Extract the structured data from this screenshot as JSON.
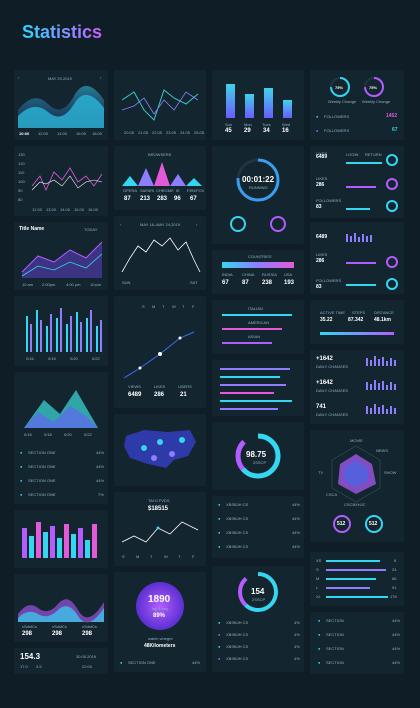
{
  "app": {
    "title": "Statistics"
  },
  "colors": {
    "bg": "#0f1d26",
    "card": "#13252f",
    "cyan": "#35d6f2",
    "purple": "#b35cff",
    "pink": "#e35ad8",
    "teal": "#38c7c7",
    "blue": "#3a6df0"
  },
  "c1": {
    "date": "MAY 20,2019",
    "times": [
      "10:00",
      "12:00",
      "14:00",
      "16:00",
      "18:00"
    ]
  },
  "c2": {
    "x_labels": [
      "20.05",
      "21.05",
      "22.05",
      "23.05",
      "24.05",
      "25.05"
    ]
  },
  "c3": {
    "days": [
      {
        "day": "Sun",
        "val": "45"
      },
      {
        "day": "Mon",
        "val": "29"
      },
      {
        "day": "Tues",
        "val": "34"
      },
      {
        "day": "Wed",
        "val": "16"
      }
    ]
  },
  "c4": {
    "ring1": "75%",
    "ring2": "75%",
    "cap1": "Weekly Change",
    "cap2": "Weekly Change",
    "f1_label": "FOLLOWERS",
    "f1_val": "1452",
    "f2_label": "FOLLOWERS",
    "f2_val": "67"
  },
  "c5": {
    "y": [
      "130",
      "120",
      "110",
      "100",
      "90",
      "80"
    ],
    "x": [
      "12.00",
      "13.00",
      "14.00",
      "15.00",
      "16.00",
      "17.00"
    ]
  },
  "c6": {
    "header": "BROWSERS",
    "cols": [
      {
        "name": "OPERA",
        "val": "87"
      },
      {
        "name": "SAFARI",
        "val": "213"
      },
      {
        "name": "CHROME",
        "val": "283"
      },
      {
        "name": "IE",
        "val": "96"
      },
      {
        "name": "FIREFOX",
        "val": "67"
      }
    ]
  },
  "c7": {
    "time": "00:01:22",
    "status": "RUNNING"
  },
  "c8": {
    "rows": [
      {
        "label": "LIKES",
        "val": "6489"
      },
      {
        "label": "LIKES",
        "val": "286"
      },
      {
        "label": "FOLLOWERS",
        "val": "83"
      }
    ],
    "legend": [
      "LOGIN",
      "RETURN"
    ]
  },
  "c9": {
    "title": "Title Name",
    "dropdown": "TODAY",
    "times": [
      "10 am",
      "2:00pm",
      "4:00 pm",
      "10:pm"
    ]
  },
  "c10": {
    "date": "MAY 18–MAY 24,2019",
    "x": [
      "SUN",
      "SAT"
    ]
  },
  "c11": {
    "header": "COUNTRIES",
    "cols": [
      {
        "name": "INDIA",
        "val": "67"
      },
      {
        "name": "CHINA",
        "val": "87"
      },
      {
        "name": "RUSSIA",
        "val": "238"
      },
      {
        "name": "USA",
        "val": "193"
      }
    ]
  },
  "c12": {
    "rows": [
      {
        "label": "LIKES",
        "val": "6489"
      },
      {
        "label": "LIKES",
        "val": "286"
      },
      {
        "label": "FOLLOWERS",
        "val": "83"
      }
    ]
  },
  "c13": {
    "x": [
      "0/16",
      "0/18",
      "0/20",
      "0/22"
    ]
  },
  "c14": {
    "days": [
      "S",
      "M",
      "T",
      "W",
      "T",
      "F"
    ],
    "stats": [
      {
        "label": "VIEWS",
        "val": "6489"
      },
      {
        "label": "LIKES",
        "val": "286"
      },
      {
        "label": "USERS",
        "val": "21"
      }
    ]
  },
  "c15": {
    "rows": [
      "ITALIAN",
      "AMERICAN",
      "ASIAN"
    ]
  },
  "c16": {
    "stats": [
      {
        "label": "ACTIVE TIME",
        "val": "35.22"
      },
      {
        "label": "STEPS",
        "val": "87.342"
      },
      {
        "label": "DISTANCE",
        "val": "48.1km"
      }
    ]
  },
  "c17": {
    "rows": [
      {
        "val": "+1642",
        "label": "DAILY CHANGES"
      },
      {
        "val": "+1642",
        "label": "DAILY CHANGES"
      },
      {
        "val": "741",
        "label": "DAILY CHANGES"
      }
    ]
  },
  "c18": {
    "x": [
      "0/16",
      "0/18",
      "0/20",
      "0/22"
    ],
    "rows": [
      {
        "label": "SECTION ONE",
        "val": "44%"
      },
      {
        "label": "SECTION ONE",
        "val": "44%"
      },
      {
        "label": "SECTION ONE",
        "val": "44%"
      },
      {
        "label": "SECTION ONE",
        "val": "7%"
      }
    ]
  },
  "c20": {
    "rows": [
      "",
      "",
      "",
      "",
      "",
      ""
    ]
  },
  "c21": {
    "val": "98.75",
    "sub": "2SSCP"
  },
  "c22": {
    "labels": [
      "MOVIE",
      "NEWS",
      "SHOW",
      "TV",
      "CSCA",
      "CSCBXHJC"
    ],
    "r1": "512",
    "r2": "512"
  },
  "c23": {
    "header": "TAHJ FVDS",
    "value": "$18515",
    "days": [
      "S",
      "M",
      "T",
      "W",
      "T",
      "F"
    ]
  },
  "c24": {
    "rows": [
      {
        "label": "XBSBJH CS",
        "val": "44%"
      },
      {
        "label": "XBSBJH CS",
        "val": "44%"
      },
      {
        "label": "XBSBJH CS",
        "val": "44%"
      },
      {
        "label": "XBSBJH CS",
        "val": "44%"
      }
    ]
  },
  "c25": {
    "rows": [
      {
        "label": "XS",
        "val": "8"
      },
      {
        "label": "S",
        "val": "24"
      },
      {
        "label": "M",
        "val": "66"
      },
      {
        "label": "L",
        "val": "91"
      },
      {
        "label": "XL",
        "val": "176"
      }
    ]
  },
  "c26": {
    "stats": [
      {
        "label": "vSdsfCs",
        "val": "298"
      },
      {
        "label": "vSdsfCs",
        "val": "298"
      },
      {
        "label": "vSdsfCs",
        "val": "298"
      }
    ]
  },
  "c27": {
    "val": "1890",
    "sub": "Tajj 4 ssg",
    "pct": "89%",
    "meta": "watch vinegre",
    "dist": "48Kilometers",
    "row_label": "SECTION ONE",
    "row_val": "44%"
  },
  "c28": {
    "val": "154",
    "sub": "2SSCP",
    "rows": [
      {
        "label": "XBSBJH CS",
        "val": "4%"
      },
      {
        "label": "XBSBJH CS",
        "val": "4%"
      },
      {
        "label": "XBSBJH CS",
        "val": "4%"
      },
      {
        "label": "XBSBJH CS",
        "val": "4%"
      }
    ]
  },
  "c29": {
    "rows": [
      {
        "label": "SECTION",
        "val": "44%"
      },
      {
        "label": "SECTION",
        "val": "44%"
      },
      {
        "label": "SECTION",
        "val": "44%"
      },
      {
        "label": "SECTION",
        "val": "44%"
      }
    ]
  },
  "c30": {
    "val": "154.3",
    "date": "30.05.2019",
    "sub": [
      "17.0",
      "3.5"
    ],
    "time": "22:00"
  }
}
